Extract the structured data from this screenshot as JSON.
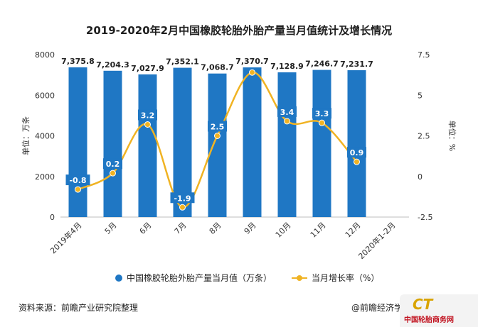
{
  "title": "2019-2020年2月中国橡胶轮胎外胎产量当月值统计及增长情况",
  "chart_data": {
    "type": "bar+line",
    "categories": [
      "2019年4月",
      "5月",
      "6月",
      "7月",
      "8月",
      "9月",
      "10月",
      "11月",
      "12月",
      "2020年1-2月"
    ],
    "series": [
      {
        "name": "中国橡胶轮胎外胎产量当月值（万条）",
        "type": "bar",
        "axis": "left",
        "color": "#1f77c4",
        "values": [
          7375.8,
          7204.3,
          7027.9,
          7352.1,
          7068.7,
          7370.7,
          7128.9,
          7246.7,
          7231.7,
          null
        ],
        "labels": [
          "7,375.8",
          "7,204.3",
          "7,027.9",
          "7,352.1",
          "7,068.7",
          "7,370.7",
          "7,128.9",
          "7,246.7",
          "7,231.7",
          ""
        ]
      },
      {
        "name": "当月增长率（%）",
        "type": "line",
        "axis": "right",
        "color": "#f0b323",
        "values": [
          -0.8,
          0.2,
          3.2,
          -1.9,
          2.5,
          6.4,
          3.4,
          3.3,
          0.9,
          null
        ],
        "labels": [
          "-0.8",
          "0.2",
          "3.2",
          "-1.9",
          "2.5",
          "",
          "3.4",
          "3.3",
          "0.9",
          ""
        ]
      }
    ],
    "y_left": {
      "label": "单位：万条",
      "min": 0,
      "max": 8000,
      "ticks": [
        0,
        2000,
        4000,
        6000,
        8000
      ]
    },
    "y_right": {
      "label": "单位：%",
      "min": -2.5,
      "max": 7.5,
      "ticks": [
        -2.5,
        0,
        2.5,
        5,
        7.5
      ],
      "tick_labels": [
        "-2.5",
        "0",
        "2.5",
        "5",
        "7.5"
      ]
    },
    "grid": false,
    "legend_position": "bottom"
  },
  "legend": {
    "bar_label": "中国橡胶轮胎外胎产量当月值（万条）",
    "line_label": "当月增长率（%）"
  },
  "footer": {
    "source": "资料来源：前瞻产业研究院整理",
    "credit": "@前瞻经济学人APP"
  },
  "watermark": {
    "mark": "CT",
    "text": "中国轮胎商务网"
  },
  "colors": {
    "bar": "#1f77c4",
    "line": "#f0b323",
    "label_bg": "#1f77c4"
  }
}
